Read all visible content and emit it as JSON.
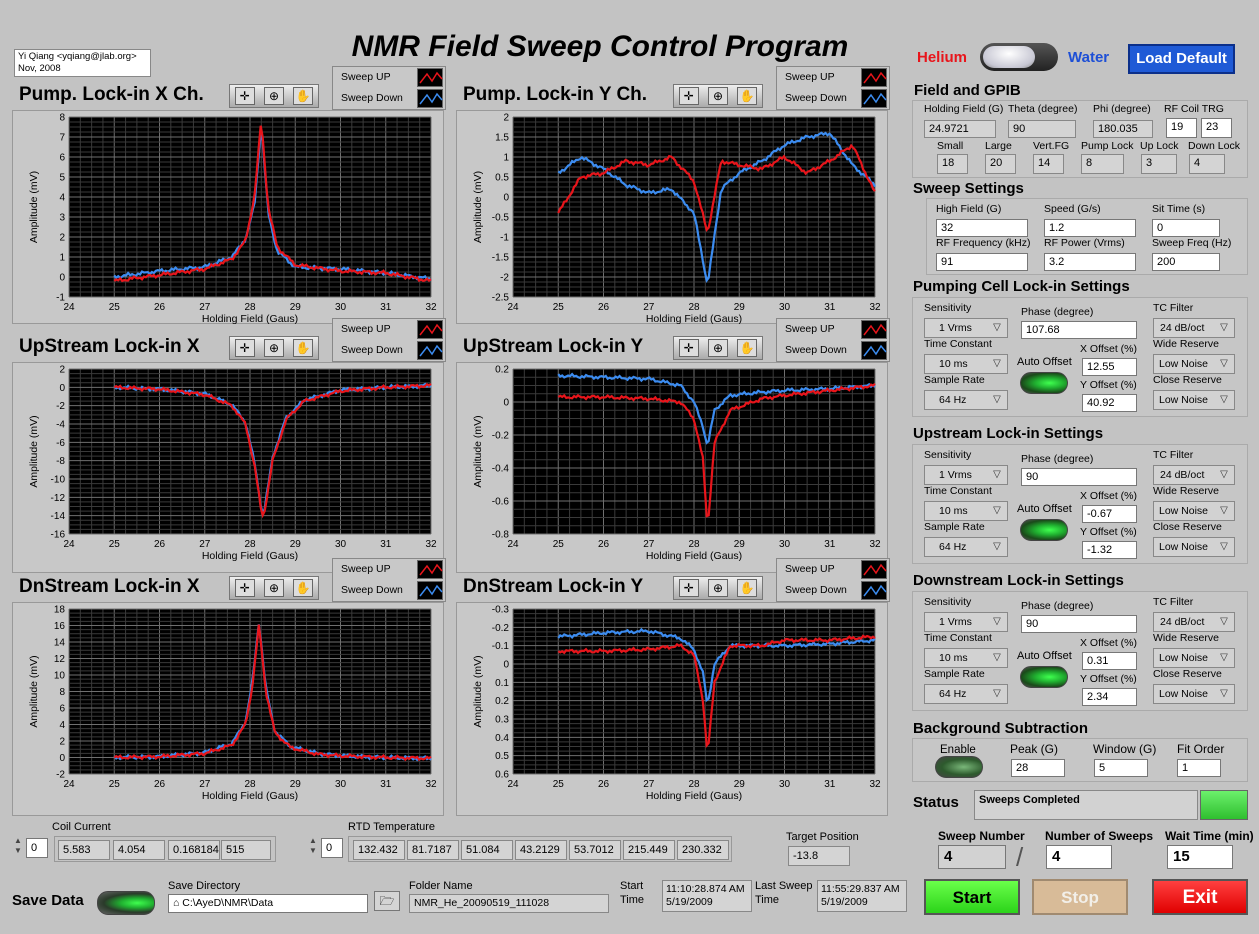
{
  "title": "NMR Field Sweep Control Program",
  "credit": {
    "line1": "Yi Qiang <yqiang@jlab.org>",
    "line2": "Nov, 2008"
  },
  "mode": {
    "left": "Helium",
    "right": "Water",
    "left_color": "#e8151b",
    "right_color": "#1d4fd6"
  },
  "load_default": "Load Default",
  "legend": {
    "up": "Sweep UP",
    "down": "Sweep Down",
    "up_color": "#e8151b",
    "down_color": "#3c8cf0"
  },
  "graphs": [
    {
      "id": "pump-x",
      "title": "Pump. Lock-in X Ch."
    },
    {
      "id": "pump-y",
      "title": "Pump. Lock-in Y Ch."
    },
    {
      "id": "up-x",
      "title": "UpStream Lock-in X"
    },
    {
      "id": "up-y",
      "title": "UpStream Lock-in Y"
    },
    {
      "id": "dn-x",
      "title": "DnStream Lock-in X"
    },
    {
      "id": "dn-y",
      "title": "DnStream Lock-in Y"
    }
  ],
  "chart_data": [
    {
      "type": "line",
      "title": "Pump. Lock-in X Ch.",
      "xlabel": "Holding Field (Gaus)",
      "ylabel": "Amplitude (mV)",
      "xlim": [
        24,
        32
      ],
      "ylim": [
        -1,
        8
      ],
      "xticks": [
        "24",
        "25",
        "26",
        "27",
        "28",
        "29",
        "30",
        "31",
        "32"
      ],
      "yticks": [
        "-1",
        "0",
        "1",
        "2",
        "3",
        "4",
        "5",
        "6",
        "7",
        "8"
      ],
      "reversed": false,
      "series": [
        {
          "name": "Sweep UP",
          "x": [
            25,
            26,
            27,
            27.6,
            27.9,
            28.1,
            28.25,
            28.4,
            28.6,
            29,
            30,
            31,
            32
          ],
          "y": [
            -0.2,
            0.1,
            0.4,
            0.9,
            1.8,
            4.0,
            7.9,
            3.5,
            1.5,
            0.6,
            0.3,
            0.2,
            -0.2
          ]
        },
        {
          "name": "Sweep Down",
          "x": [
            25,
            26,
            27,
            27.6,
            27.9,
            28.1,
            28.25,
            28.4,
            28.6,
            29,
            30,
            31,
            32
          ],
          "y": [
            0.0,
            0.3,
            0.5,
            1.0,
            1.9,
            3.6,
            7.7,
            3.2,
            1.3,
            0.5,
            0.4,
            0.2,
            -0.1
          ]
        }
      ]
    },
    {
      "type": "line",
      "title": "Pump. Lock-in Y Ch.",
      "xlabel": "Holding Field (Gaus)",
      "ylabel": "Amplitude (mV)",
      "xlim": [
        24,
        32
      ],
      "ylim": [
        -2.5,
        2
      ],
      "xticks": [
        "24",
        "25",
        "26",
        "27",
        "28",
        "29",
        "30",
        "31",
        "32"
      ],
      "yticks": [
        "-2.5",
        "-2",
        "-1.5",
        "-1",
        "-0.5",
        "0",
        "0.5",
        "1",
        "1.5",
        "2"
      ],
      "reversed": false,
      "series": [
        {
          "name": "Sweep UP",
          "x": [
            25,
            25.5,
            26,
            26.5,
            27,
            27.5,
            28,
            28.3,
            28.6,
            29,
            29.5,
            30,
            30.5,
            31,
            31.5,
            32
          ],
          "y": [
            -0.4,
            0.5,
            0.6,
            0.9,
            0.8,
            1.0,
            0.4,
            -0.9,
            0.9,
            0.8,
            0.7,
            1.0,
            0.6,
            0.9,
            1.3,
            0.1
          ]
        },
        {
          "name": "Sweep Down",
          "x": [
            25,
            25.5,
            26,
            26.5,
            27,
            27.5,
            28,
            28.3,
            28.6,
            29,
            29.5,
            30,
            30.5,
            31,
            31.5,
            32
          ],
          "y": [
            0.6,
            1.0,
            0.7,
            0.3,
            0.1,
            0.2,
            -0.4,
            -2.2,
            0.2,
            0.6,
            0.9,
            1.3,
            1.5,
            1.6,
            0.8,
            0.3
          ]
        }
      ]
    },
    {
      "type": "line",
      "title": "UpStream Lock-in X",
      "xlabel": "Holding Field (Gaus)",
      "ylabel": "Amplitude (mV)",
      "xlim": [
        24,
        32
      ],
      "ylim": [
        -16,
        2
      ],
      "xticks": [
        "24",
        "25",
        "26",
        "27",
        "28",
        "29",
        "30",
        "31",
        "32"
      ],
      "yticks": [
        "-16",
        "-14",
        "-12",
        "-10",
        "-8",
        "-6",
        "-4",
        "-2",
        "0",
        "2"
      ],
      "reversed": false,
      "series": [
        {
          "name": "Sweep UP",
          "x": [
            25,
            26,
            27,
            27.6,
            27.9,
            28.1,
            28.25,
            28.3,
            28.5,
            28.8,
            29.2,
            30,
            31,
            32
          ],
          "y": [
            0.0,
            -0.2,
            -0.8,
            -2.0,
            -4.0,
            -8.5,
            -13.5,
            -14.2,
            -8.0,
            -3.5,
            -1.5,
            -0.4,
            0.0,
            0.2
          ]
        },
        {
          "name": "Sweep Down",
          "x": [
            25,
            26,
            27,
            27.6,
            27.9,
            28.1,
            28.25,
            28.3,
            28.5,
            28.8,
            29.2,
            30,
            31,
            32
          ],
          "y": [
            0.0,
            -0.2,
            -0.7,
            -1.9,
            -3.8,
            -8.2,
            -13.2,
            -14.0,
            -7.6,
            -3.3,
            -1.4,
            -0.3,
            0.0,
            0.2
          ]
        }
      ]
    },
    {
      "type": "line",
      "title": "UpStream Lock-in Y",
      "xlabel": "Holding Field (Gaus)",
      "ylabel": "Amplitude (mV)",
      "xlim": [
        24,
        32
      ],
      "ylim": [
        -0.8,
        0.2
      ],
      "xticks": [
        "24",
        "25",
        "26",
        "27",
        "28",
        "29",
        "30",
        "31",
        "32"
      ],
      "yticks": [
        "-0.8",
        "-0.6",
        "-0.4",
        "-0.2",
        "0",
        "0.2"
      ],
      "reversed": false,
      "series": [
        {
          "name": "Sweep UP",
          "x": [
            25,
            26,
            27,
            27.7,
            28.0,
            28.2,
            28.3,
            28.45,
            28.8,
            29.5,
            30,
            31,
            32
          ],
          "y": [
            0.03,
            0.03,
            0.02,
            0.0,
            -0.1,
            -0.35,
            -0.77,
            -0.25,
            -0.05,
            0.02,
            0.04,
            0.07,
            0.1
          ]
        },
        {
          "name": "Sweep Down",
          "x": [
            25,
            26,
            27,
            27.7,
            28.0,
            28.2,
            28.3,
            28.45,
            28.8,
            29.5,
            30,
            31,
            32
          ],
          "y": [
            0.16,
            0.15,
            0.14,
            0.1,
            0.0,
            -0.15,
            -0.27,
            -0.05,
            0.04,
            0.06,
            0.07,
            0.08,
            0.1
          ]
        }
      ]
    },
    {
      "type": "line",
      "title": "DnStream Lock-in X",
      "xlabel": "Holding Field (Gaus)",
      "ylabel": "Amplitude (mV)",
      "xlim": [
        24,
        32
      ],
      "ylim": [
        -2,
        18
      ],
      "xticks": [
        "24",
        "25",
        "26",
        "27",
        "28",
        "29",
        "30",
        "31",
        "32"
      ],
      "yticks": [
        "-2",
        "0",
        "2",
        "4",
        "6",
        "8",
        "10",
        "12",
        "14",
        "16",
        "18"
      ],
      "reversed": false,
      "series": [
        {
          "name": "Sweep UP",
          "x": [
            25,
            26,
            27,
            27.6,
            27.9,
            28.05,
            28.2,
            28.35,
            28.55,
            28.9,
            29.5,
            30,
            31,
            32
          ],
          "y": [
            0.0,
            0.1,
            0.5,
            1.5,
            4.0,
            8.5,
            16.2,
            8.0,
            3.0,
            1.2,
            0.4,
            0.2,
            0.0,
            -0.1
          ]
        },
        {
          "name": "Sweep Down",
          "x": [
            25,
            26,
            27,
            27.6,
            27.9,
            28.05,
            28.2,
            28.35,
            28.55,
            28.9,
            29.5,
            30,
            31,
            32
          ],
          "y": [
            0.0,
            0.1,
            0.6,
            1.7,
            4.3,
            9.0,
            16.6,
            8.4,
            3.2,
            1.3,
            0.5,
            0.2,
            0.0,
            -0.1
          ]
        }
      ]
    },
    {
      "type": "line",
      "title": "DnStream Lock-in Y",
      "xlabel": "Holding Field (Gaus)",
      "ylabel": "Amplitude (mV)",
      "xlim": [
        24,
        32
      ],
      "ylim": [
        -0.3,
        0.6
      ],
      "xticks": [
        "24",
        "25",
        "26",
        "27",
        "28",
        "29",
        "30",
        "31",
        "32"
      ],
      "yticks": [
        "-0.3",
        "-0.2",
        "-0.1",
        "0",
        "0.1",
        "0.2",
        "0.3",
        "0.4",
        "0.5",
        "0.6"
      ],
      "reversed": true,
      "series": [
        {
          "name": "Sweep UP",
          "x": [
            25,
            26,
            27,
            27.7,
            28.0,
            28.2,
            28.3,
            28.45,
            28.8,
            29.5,
            30,
            31,
            32
          ],
          "y": [
            -0.07,
            -0.07,
            -0.08,
            -0.1,
            -0.05,
            0.2,
            0.5,
            0.1,
            -0.1,
            -0.1,
            -0.13,
            -0.13,
            -0.15
          ]
        },
        {
          "name": "Sweep Down",
          "x": [
            25,
            26,
            27,
            27.7,
            28.0,
            28.2,
            28.3,
            28.45,
            28.8,
            29.5,
            30,
            31,
            32
          ],
          "y": [
            -0.15,
            -0.17,
            -0.18,
            -0.14,
            -0.08,
            0.05,
            0.23,
            0.0,
            -0.1,
            -0.1,
            -0.1,
            -0.11,
            -0.13
          ]
        }
      ]
    }
  ],
  "field_gpib": {
    "title": "Field and GPIB",
    "holding_field_label": "Holding Field (G)",
    "holding_field": "24.9721",
    "theta_label": "Theta (degree)",
    "theta": "90",
    "phi_label": "Phi (degree)",
    "phi": "180.035",
    "rf_coil_label": "RF Coil TRG",
    "rf_coil_1": "19",
    "rf_coil_2": "23",
    "small_label": "Small",
    "small": "18",
    "large_label": "Large",
    "large": "20",
    "vertfg_label": "Vert.FG",
    "vertfg": "14",
    "pumplock_label": "Pump Lock",
    "pumplock": "8",
    "uplock_label": "Up Lock",
    "uplock": "3",
    "downlock_label": "Down Lock",
    "downlock": "4"
  },
  "sweep": {
    "title": "Sweep Settings",
    "high_field_label": "High Field (G)",
    "high_field": "32",
    "speed_label": "Speed (G/s)",
    "speed": "1.2",
    "sit_time_label": "Sit Time (s)",
    "sit_time": "0",
    "rf_freq_label": "RF Frequency (kHz)",
    "rf_freq": "91",
    "rf_power_label": "RF Power (Vrms)",
    "rf_power": "3.2",
    "sweep_freq_label": "Sweep Freq (Hz)",
    "sweep_freq": "200"
  },
  "lockin_labels": {
    "sensitivity": "Sensitivity",
    "phase": "Phase (degree)",
    "tc_filter": "TC Filter",
    "time_constant": "Time Constant",
    "auto_offset": "Auto Offset",
    "x_offset": "X Offset (%)",
    "wide_reserve": "Wide Reserve",
    "sample_rate": "Sample Rate",
    "y_offset": "Y Offset (%)",
    "close_reserve": "Close Reserve"
  },
  "pump_lockin": {
    "title": "Pumping Cell Lock-in Settings",
    "sensitivity": "1 Vrms",
    "phase": "107.68",
    "tc_filter": "24 dB/oct",
    "time_constant": "10 ms",
    "x_offset": "12.55",
    "wide_reserve": "Low Noise",
    "sample_rate": "64 Hz",
    "y_offset": "40.92",
    "close_reserve": "Low Noise"
  },
  "up_lockin": {
    "title": "Upstream Lock-in Settings",
    "sensitivity": "1 Vrms",
    "phase": "90",
    "tc_filter": "24 dB/oct",
    "time_constant": "10 ms",
    "x_offset": "-0.67",
    "wide_reserve": "Low Noise",
    "sample_rate": "64 Hz",
    "y_offset": "-1.32",
    "close_reserve": "Low Noise"
  },
  "dn_lockin": {
    "title": "Downstream Lock-in Settings",
    "sensitivity": "1 Vrms",
    "phase": "90",
    "tc_filter": "24 dB/oct",
    "time_constant": "10 ms",
    "x_offset": "0.31",
    "wide_reserve": "Low Noise",
    "sample_rate": "64 Hz",
    "y_offset": "2.34",
    "close_reserve": "Low Noise"
  },
  "background": {
    "title": "Background Subtraction",
    "enable_label": "Enable",
    "peak_label": "Peak (G)",
    "peak": "28",
    "window_label": "Window (G)",
    "window": "5",
    "fit_label": "Fit Order",
    "fit": "1"
  },
  "status": {
    "label": "Status",
    "text": "Sweeps Completed"
  },
  "sweep_count": {
    "number_label": "Sweep Number",
    "number": "4",
    "of_label": "Number of Sweeps",
    "of": "4",
    "wait_label": "Wait Time (min)",
    "wait": "15"
  },
  "buttons": {
    "start": "Start",
    "stop": "Stop",
    "exit": "Exit"
  },
  "coil_current": {
    "label": "Coil Current",
    "index": "0",
    "values": [
      "5.583",
      "4.054",
      "0.168184",
      "515"
    ]
  },
  "rtd": {
    "label": "RTD Temperature",
    "index": "0",
    "values": [
      "132.432",
      "81.7187",
      "51.084",
      "43.2129",
      "53.7012",
      "215.449",
      "230.332"
    ]
  },
  "target": {
    "label": "Target Position",
    "value": "-13.8"
  },
  "save": {
    "label": "Save Data",
    "dir_label": "Save Directory",
    "dir": "C:\\AyeD\\NMR\\Data",
    "folder_label": "Folder Name",
    "folder": "NMR_He_20090519_111028",
    "start_label_1": "Start",
    "start_label_2": "Time",
    "start_time": "11:10:28.874 AM",
    "start_date": "5/19/2009",
    "last_label_1": "Last Sweep",
    "last_label_2": "Time",
    "last_time": "11:55:29.837 AM",
    "last_date": "5/19/2009"
  }
}
